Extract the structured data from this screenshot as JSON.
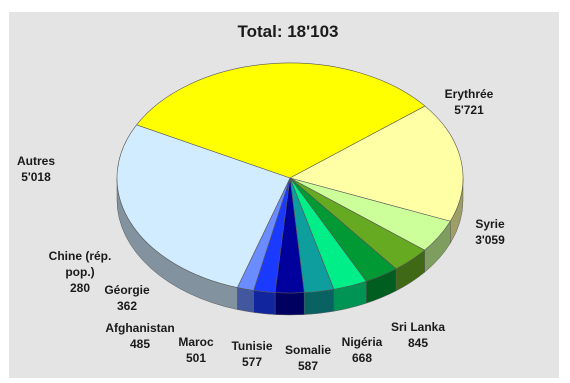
{
  "chart_data": {
    "type": "pie",
    "title": "Total: 18'103",
    "slices": [
      {
        "label": "Erythrée",
        "value_label": "5'721",
        "value": 5721,
        "color": "#ffff00"
      },
      {
        "label": "Syrie",
        "value_label": "3'059",
        "value": 3059,
        "color": "#ffffa6"
      },
      {
        "label": "Sri Lanka",
        "value_label": "845",
        "value": 845,
        "color": "#ccff99"
      },
      {
        "label": "Nigéria",
        "value_label": "668",
        "value": 668,
        "color": "#66aa22"
      },
      {
        "label": "Somalie",
        "value_label": "587",
        "value": 587,
        "color": "#009933"
      },
      {
        "label": "Tunisie",
        "value_label": "577",
        "value": 577,
        "color": "#00ee88"
      },
      {
        "label": "Maroc",
        "value_label": "501",
        "value": 501,
        "color": "#0f9e9e"
      },
      {
        "label": "Afghanistan",
        "value_label": "485",
        "value": 485,
        "color": "#00009c"
      },
      {
        "label": "Géorgie",
        "value_label": "362",
        "value": 362,
        "color": "#1a3bff"
      },
      {
        "label": "Chine (rép. pop.)",
        "value_label": "280",
        "value": 280,
        "color": "#6b8cff"
      },
      {
        "label": "Autres",
        "value_label": "5'018",
        "value": 5018,
        "color": "#d2ecff"
      }
    ]
  }
}
